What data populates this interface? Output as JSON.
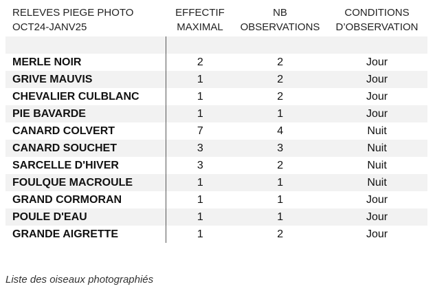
{
  "header": {
    "title_line1": "RELEVES PIEGE PHOTO",
    "title_line2": "OCT24-JANV25",
    "col_effectif": [
      "EFFECTIF",
      "MAXIMAL"
    ],
    "col_nb": [
      "NB",
      "OBSERVATIONS"
    ],
    "col_conditions": [
      "CONDITIONS",
      "D’OBSERVATION"
    ]
  },
  "rows": [
    {
      "name": "MERLE NOIR",
      "effectif": "2",
      "nb": "2",
      "conditions": "Jour"
    },
    {
      "name": "GRIVE MAUVIS",
      "effectif": "1",
      "nb": "2",
      "conditions": "Jour"
    },
    {
      "name": "CHEVALIER CULBLANC",
      "effectif": "1",
      "nb": "2",
      "conditions": "Jour"
    },
    {
      "name": "PIE BAVARDE",
      "effectif": "1",
      "nb": "1",
      "conditions": "Jour"
    },
    {
      "name": "CANARD COLVERT",
      "effectif": "7",
      "nb": "4",
      "conditions": "Nuit"
    },
    {
      "name": "CANARD SOUCHET",
      "effectif": "3",
      "nb": "3",
      "conditions": "Nuit"
    },
    {
      "name": "SARCELLE D'HIVER",
      "effectif": "3",
      "nb": "2",
      "conditions": "Nuit"
    },
    {
      "name": "FOULQUE MACROULE",
      "effectif": "1",
      "nb": "1",
      "conditions": "Nuit"
    },
    {
      "name": "GRAND CORMORAN",
      "effectif": "1",
      "nb": "1",
      "conditions": "Jour"
    },
    {
      "name": "POULE D'EAU",
      "effectif": "1",
      "nb": "1",
      "conditions": "Jour"
    },
    {
      "name": "GRANDE AIGRETTE",
      "effectif": "1",
      "nb": "2",
      "conditions": "Jour"
    }
  ],
  "caption": "Liste des oiseaux photographiés",
  "colors": {
    "stripe": "#f2f2f2",
    "divider": "#555555"
  }
}
